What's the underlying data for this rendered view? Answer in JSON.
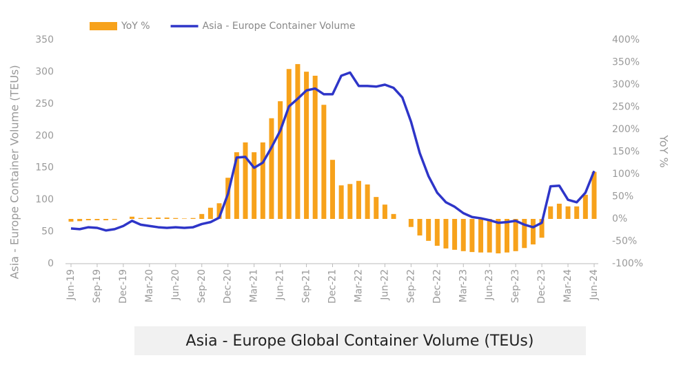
{
  "chart_data": {
    "type": "bar_line",
    "title": "Asia - Europe Global Container Volume (TEUs)",
    "y_label": "Asia - Europe Container Volume (TEUs)",
    "y2_label": "YoY %",
    "categories": [
      "Jun-19",
      null,
      null,
      "Sep-19",
      null,
      null,
      "Dec-19",
      null,
      null,
      "Mar-20",
      null,
      null,
      "Jun-20",
      null,
      null,
      "Sep-20",
      null,
      null,
      "Dec-20",
      null,
      null,
      "Mar-21",
      null,
      null,
      "Jun-21",
      null,
      null,
      "Sep-21",
      null,
      null,
      "Dec-21",
      null,
      null,
      "Mar-22",
      null,
      null,
      "Jun-22",
      null,
      null,
      "Sep-22",
      null,
      null,
      "Dec-22",
      null,
      null,
      "Mar-23",
      null,
      null,
      "Jun-23",
      null,
      null,
      "Sep-23",
      null,
      null,
      "Dec-23",
      null,
      null,
      "Mar-24",
      null,
      null,
      "Jun-24"
    ],
    "series": [
      {
        "name": "YoY %",
        "type": "bar",
        "axis": "y2",
        "color": "#f7a21b",
        "values": [
          -6,
          -5,
          -3,
          -3,
          -3,
          -2,
          0,
          5,
          2,
          3,
          3,
          3,
          2,
          1,
          2,
          11,
          25,
          35,
          92,
          149,
          171,
          149,
          171,
          225,
          263,
          335,
          346,
          329,
          320,
          255,
          132,
          75,
          78,
          85,
          77,
          49,
          32,
          11,
          0,
          -18,
          -37,
          -49,
          -60,
          -66,
          -69,
          -72,
          -74,
          -75,
          -75,
          -77,
          -75,
          -72,
          -65,
          -57,
          -42,
          28,
          34,
          28,
          28,
          54,
          105
        ]
      },
      {
        "name": "Asia - Europe Container Volume",
        "type": "line",
        "axis": "y",
        "color": "#2e35c8",
        "values": [
          55,
          54,
          57,
          56,
          52,
          54,
          59,
          67,
          61,
          59,
          57,
          56,
          57,
          56,
          57,
          62,
          65,
          72,
          109,
          166,
          167,
          150,
          158,
          182,
          208,
          246,
          258,
          271,
          274,
          265,
          265,
          294,
          299,
          278,
          278,
          277,
          280,
          275,
          260,
          222,
          173,
          137,
          111,
          96,
          89,
          79,
          73,
          71,
          68,
          64,
          65,
          67,
          61,
          57,
          64,
          121,
          122,
          100,
          96,
          111,
          145
        ]
      }
    ],
    "ylim": [
      0,
      350
    ],
    "yticks": [
      0,
      50,
      100,
      150,
      200,
      250,
      300,
      350
    ],
    "y2lim": [
      -100,
      400
    ],
    "y2ticks": [
      {
        "value": -100,
        "label": "-100%"
      },
      {
        "value": -50,
        "label": "-50%"
      },
      {
        "value": 0,
        "label": "0%"
      },
      {
        "value": 50,
        "label": "50%"
      },
      {
        "value": 100,
        "label": "100%"
      },
      {
        "value": 150,
        "label": "150%"
      },
      {
        "value": 200,
        "label": "200%"
      },
      {
        "value": 250,
        "label": "250%"
      },
      {
        "value": 300,
        "label": "300%"
      },
      {
        "value": 350,
        "label": "350%"
      },
      {
        "value": 400,
        "label": "400%"
      }
    ],
    "grid": false,
    "legend": "top"
  }
}
